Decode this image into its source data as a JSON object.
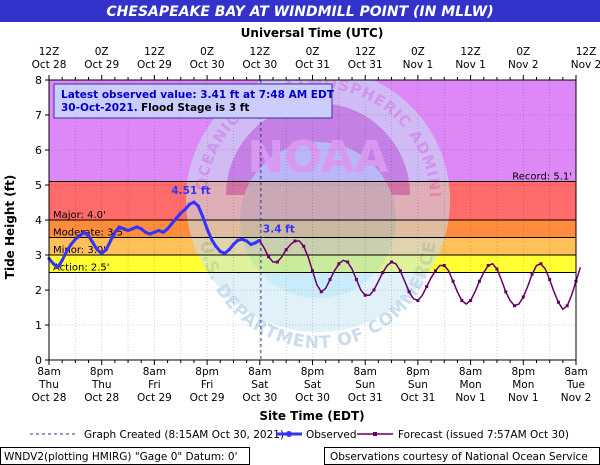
{
  "chart_data": {
    "type": "line",
    "title": "CHESAPEAKE BAY AT WINDMILL POINT (IN MLLW)",
    "top_axis_title": "Universal Time (UTC)",
    "bottom_axis_title": "Site Time (EDT)",
    "ylabel": "Tide Height (ft)",
    "ylim": [
      0,
      8
    ],
    "y_ticks": [
      "0",
      "1",
      "2",
      "3",
      "4",
      "5",
      "6",
      "7",
      "8"
    ],
    "grid": true,
    "x_range_hours": [
      0,
      108
    ],
    "top_ticks": [
      {
        "hour": 0,
        "l1": "12Z",
        "l2": "Oct 28"
      },
      {
        "hour": 12,
        "l1": "0Z",
        "l2": "Oct 29"
      },
      {
        "hour": 24,
        "l1": "12Z",
        "l2": "Oct 29"
      },
      {
        "hour": 36,
        "l1": "0Z",
        "l2": "Oct 30"
      },
      {
        "hour": 48,
        "l1": "12Z",
        "l2": "Oct 30"
      },
      {
        "hour": 60,
        "l1": "0Z",
        "l2": "Oct 31"
      },
      {
        "hour": 72,
        "l1": "12Z",
        "l2": "Oct 31"
      },
      {
        "hour": 84,
        "l1": "0Z",
        "l2": "Nov 1"
      },
      {
        "hour": 96,
        "l1": "12Z",
        "l2": "Nov 1"
      },
      {
        "hour": 108,
        "l1": "0Z",
        "l2": "Nov 2"
      },
      {
        "hour": 120,
        "l1": "12Z",
        "l2": "Nov 2"
      }
    ],
    "bottom_ticks": [
      {
        "hour": 0,
        "l1": "8am",
        "l2": "Thu",
        "l3": "Oct 28"
      },
      {
        "hour": 12,
        "l1": "8pm",
        "l2": "Thu",
        "l3": "Oct 28"
      },
      {
        "hour": 24,
        "l1": "8am",
        "l2": "Fri",
        "l3": "Oct 29"
      },
      {
        "hour": 36,
        "l1": "8pm",
        "l2": "Fri",
        "l3": "Oct 29"
      },
      {
        "hour": 48,
        "l1": "8am",
        "l2": "Sat",
        "l3": "Oct 30"
      },
      {
        "hour": 60,
        "l1": "8pm",
        "l2": "Sat",
        "l3": "Oct 30"
      },
      {
        "hour": 72,
        "l1": "8am",
        "l2": "Sun",
        "l3": "Oct 31"
      },
      {
        "hour": 84,
        "l1": "8pm",
        "l2": "Sun",
        "l3": "Oct 31"
      },
      {
        "hour": 96,
        "l1": "8am",
        "l2": "Mon",
        "l3": "Nov 1"
      },
      {
        "hour": 108,
        "l1": "8pm",
        "l2": "Mon",
        "l3": "Nov 1"
      },
      {
        "hour": 120,
        "l1": "8am",
        "l2": "Tue",
        "l3": "Nov 2"
      }
    ],
    "flood_bands": [
      {
        "name": "Action",
        "from": 2.5,
        "to": 3.0,
        "color": "#ffff33",
        "label": "Action: 2.5'"
      },
      {
        "name": "Minor",
        "from": 3.0,
        "to": 3.5,
        "color": "#ffc05a",
        "label": "Minor: 3.0'"
      },
      {
        "name": "Moderate",
        "from": 3.5,
        "to": 4.0,
        "color": "#ff8c3c",
        "label": "Moderate: 3.5'"
      },
      {
        "name": "Major",
        "from": 4.0,
        "to": 8.0,
        "color": "#dd88f6",
        "label": "Major: 4.0'"
      }
    ],
    "major_extra_band": {
      "from": 4.0,
      "to": 5.1,
      "color": "#ff6a6a"
    },
    "record": {
      "value": 5.1,
      "label": "Record: 5.1'"
    },
    "graph_created_hour": 48.25,
    "series": [
      {
        "name": "Observed",
        "color": "#3333ff",
        "points": [
          [
            0,
            2.9
          ],
          [
            1,
            2.75
          ],
          [
            2,
            2.65
          ],
          [
            3,
            2.85
          ],
          [
            4,
            3.1
          ],
          [
            5,
            3.3
          ],
          [
            6,
            3.45
          ],
          [
            7,
            3.55
          ],
          [
            8,
            3.65
          ],
          [
            9,
            3.55
          ],
          [
            10,
            3.35
          ],
          [
            11,
            3.15
          ],
          [
            12,
            3.05
          ],
          [
            13,
            3.15
          ],
          [
            14,
            3.4
          ],
          [
            15,
            3.65
          ],
          [
            16,
            3.8
          ],
          [
            17,
            3.75
          ],
          [
            18,
            3.7
          ],
          [
            19,
            3.75
          ],
          [
            20,
            3.8
          ],
          [
            21,
            3.75
          ],
          [
            22,
            3.65
          ],
          [
            23,
            3.6
          ],
          [
            24,
            3.65
          ],
          [
            25,
            3.7
          ],
          [
            26,
            3.65
          ],
          [
            27,
            3.75
          ],
          [
            28,
            3.9
          ],
          [
            29,
            4.05
          ],
          [
            30,
            4.2
          ],
          [
            31,
            4.3
          ],
          [
            32,
            4.45
          ],
          [
            33,
            4.51
          ],
          [
            34,
            4.4
          ],
          [
            35,
            4.1
          ],
          [
            36,
            3.75
          ],
          [
            37,
            3.45
          ],
          [
            38,
            3.25
          ],
          [
            39,
            3.1
          ],
          [
            40,
            3.05
          ],
          [
            41,
            3.15
          ],
          [
            42,
            3.3
          ],
          [
            43,
            3.42
          ],
          [
            44,
            3.45
          ],
          [
            45,
            3.4
          ],
          [
            46,
            3.3
          ],
          [
            47,
            3.35
          ],
          [
            47.8,
            3.41
          ]
        ]
      },
      {
        "name": "Forecast (issued 7:57AM Oct 30)",
        "color": "#660066",
        "points": [
          [
            48,
            3.4
          ],
          [
            49,
            3.2
          ],
          [
            50,
            2.95
          ],
          [
            51,
            2.8
          ],
          [
            52,
            2.8
          ],
          [
            53,
            2.95
          ],
          [
            54,
            3.15
          ],
          [
            55,
            3.3
          ],
          [
            56,
            3.4
          ],
          [
            57,
            3.4
          ],
          [
            58,
            3.25
          ],
          [
            59,
            2.95
          ],
          [
            60,
            2.55
          ],
          [
            61,
            2.15
          ],
          [
            62,
            1.95
          ],
          [
            63,
            2.05
          ],
          [
            64,
            2.3
          ],
          [
            65,
            2.55
          ],
          [
            66,
            2.75
          ],
          [
            67,
            2.85
          ],
          [
            68,
            2.8
          ],
          [
            69,
            2.6
          ],
          [
            70,
            2.3
          ],
          [
            71,
            2.0
          ],
          [
            72,
            1.85
          ],
          [
            73,
            1.85
          ],
          [
            74,
            2.0
          ],
          [
            75,
            2.25
          ],
          [
            76,
            2.5
          ],
          [
            77,
            2.7
          ],
          [
            78,
            2.8
          ],
          [
            79,
            2.75
          ],
          [
            80,
            2.55
          ],
          [
            81,
            2.25
          ],
          [
            82,
            1.95
          ],
          [
            83,
            1.75
          ],
          [
            84,
            1.7
          ],
          [
            85,
            1.85
          ],
          [
            86,
            2.1
          ],
          [
            87,
            2.35
          ],
          [
            88,
            2.55
          ],
          [
            89,
            2.7
          ],
          [
            90,
            2.7
          ],
          [
            91,
            2.55
          ],
          [
            92,
            2.25
          ],
          [
            93,
            1.95
          ],
          [
            94,
            1.7
          ],
          [
            95,
            1.6
          ],
          [
            96,
            1.7
          ],
          [
            97,
            1.95
          ],
          [
            98,
            2.25
          ],
          [
            99,
            2.5
          ],
          [
            100,
            2.7
          ],
          [
            101,
            2.75
          ],
          [
            102,
            2.6
          ],
          [
            103,
            2.3
          ],
          [
            104,
            1.95
          ],
          [
            105,
            1.7
          ],
          [
            106,
            1.55
          ],
          [
            107,
            1.6
          ],
          [
            108,
            1.8
          ],
          [
            109,
            2.1
          ],
          [
            110,
            2.45
          ],
          [
            111,
            2.7
          ],
          [
            112,
            2.75
          ],
          [
            113,
            2.6
          ],
          [
            114,
            2.3
          ],
          [
            115,
            1.95
          ],
          [
            116,
            1.65
          ],
          [
            117,
            1.45
          ],
          [
            118,
            1.55
          ],
          [
            119,
            1.85
          ],
          [
            120,
            2.25
          ],
          [
            121,
            2.65
          ]
        ]
      }
    ],
    "annotations": [
      {
        "hour": 33,
        "value": 4.51,
        "text": "4.51 ft"
      },
      {
        "hour": 47.8,
        "value": 3.41,
        "text": "3.4 ft"
      }
    ],
    "info_box": {
      "line1": "Latest observed value: 3.41 ft at 7:48 AM EDT",
      "line2_date": "30-Oct-2021.",
      "line2_flood": "Flood Stage is 3 ft"
    },
    "legend": {
      "graph_created": "Graph Created (8:15AM Oct 30, 2021)",
      "observed": "Observed",
      "forecast": "Forecast (issued 7:57AM Oct 30)"
    },
    "footer": {
      "left": "WNDV2(plotting HMIRG) \"Gage 0\" Datum: 0'",
      "right": "Observations courtesy of National Ocean Service"
    },
    "watermark": {
      "text": "NOAA",
      "ring_text": "NATIONAL OCEANIC AND ATMOSPHERIC ADMINISTRATION",
      "bottom_text": "U.S. DEPARTMENT OF COMMERCE"
    }
  }
}
